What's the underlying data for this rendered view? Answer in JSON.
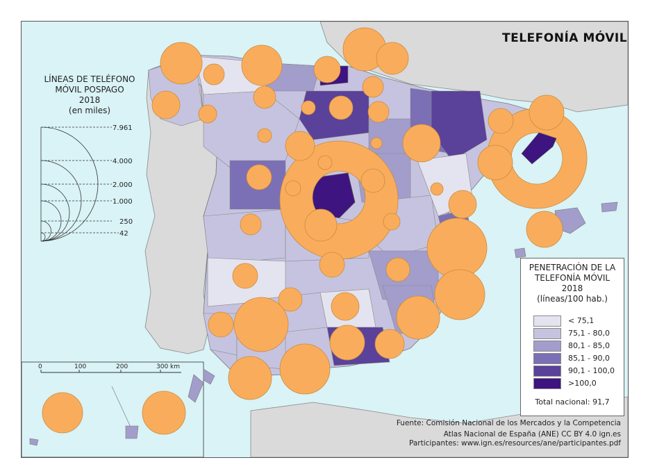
{
  "title": "TELEFONÍA MÓVIL",
  "circle_legend": {
    "title_lines": [
      "LÍNEAS DE TELÉFONO",
      "MÓVIL POSPAGO",
      "2018",
      "(en miles)"
    ],
    "values": [
      "7.961",
      "4.000",
      "2.000",
      "1.000",
      "250",
      "42"
    ]
  },
  "penetration_legend": {
    "title_lines": [
      "PENETRACIÓN DE LA",
      "TELEFONÍA MÓVIL",
      "2018",
      "(líneas/100 hab.)"
    ],
    "classes": [
      {
        "label": "< 75,1",
        "color": "#e4e3f0"
      },
      {
        "label": "75,1 - 80,0",
        "color": "#c6c3e0"
      },
      {
        "label": "80,1 - 85,0",
        "color": "#a29dcb"
      },
      {
        "label": "85,1 - 90,0",
        "color": "#7b6fb5"
      },
      {
        "label": "90,1 - 100,0",
        "color": "#5a4199"
      },
      {
        "label": ">100,0",
        "color": "#3e1480"
      }
    ],
    "total": "Total nacional: 91,7"
  },
  "scale_bar": {
    "ticks": [
      "0",
      "100",
      "200",
      "300"
    ],
    "unit": "km"
  },
  "sources": {
    "line1": "Fuente: Comisión Nacional de los Mercados y la Competencia",
    "line2": "Atlas Nacional de España (ANE) CC BY 4.0 ign.es",
    "line3": "Participantes: www.ign.es/resources/ane/participantes.pdf"
  },
  "colors": {
    "sea": "#d9f3f6",
    "land_other": "#dadada",
    "circle": "#f9ad5c",
    "circle_stroke": "#c98a3e"
  }
}
